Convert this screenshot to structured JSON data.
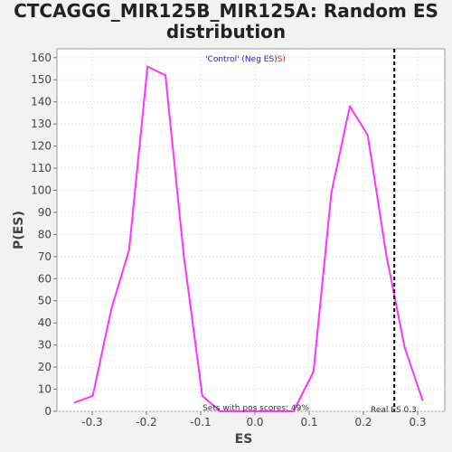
{
  "chart_data": {
    "type": "line",
    "title_line1": "CTCAGGG_MIR125B_MIR125A: Random ES",
    "title_line2": "distribution",
    "xlabel": "ES",
    "ylabel": "P(ES)",
    "xlim": [
      -0.365,
      0.35
    ],
    "ylim": [
      0,
      164
    ],
    "xticks": [
      -0.3,
      -0.2,
      -0.1,
      0.0,
      0.1,
      0.2,
      0.3
    ],
    "xtick_labels": [
      "-0.3",
      "-0.2",
      "-0.1",
      "0.0",
      "0.1",
      "0.2",
      "0.3"
    ],
    "yticks": [
      0,
      10,
      20,
      30,
      40,
      50,
      60,
      70,
      80,
      90,
      100,
      110,
      120,
      130,
      140,
      150,
      160
    ],
    "ytick_labels": [
      "0",
      "10",
      "20",
      "30",
      "40",
      "50",
      "60",
      "70",
      "80",
      "90",
      "100",
      "110",
      "120",
      "130",
      "140",
      "150",
      "160"
    ],
    "grid": true,
    "series": [
      {
        "color": "#ff33ff",
        "x": [
          -0.332,
          -0.299,
          -0.265,
          -0.232,
          -0.198,
          -0.165,
          -0.131,
          -0.097,
          -0.064,
          -0.03,
          0.003,
          0.037,
          0.071,
          0.108,
          0.141,
          0.175,
          0.208,
          0.242,
          0.276,
          0.309
        ],
        "y": [
          4,
          7,
          46,
          73,
          156,
          152,
          70,
          7,
          0,
          0,
          0,
          0,
          0,
          18,
          99,
          138,
          125,
          71,
          29,
          5
        ]
      }
    ],
    "real_es": {
      "x": 0.257,
      "color": "#000000",
      "style": "dashed"
    },
    "legend": {
      "part1": "'Control' (Neg ES)",
      "part2": "S)",
      "color1": "#2222cc",
      "color2": "#ee2222",
      "placement": "top-center"
    },
    "annotations": {
      "pos_scores": "Sets with pos scores: 49%",
      "real_es_label": "Real ES 0.3"
    }
  }
}
